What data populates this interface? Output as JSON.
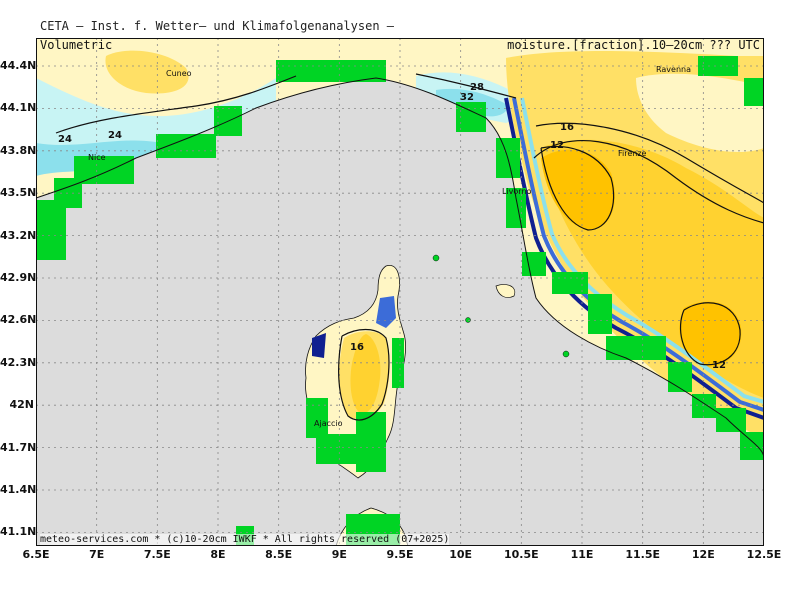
{
  "header": {
    "title": "CETA – Inst. f. Wetter– und Klimafolgenanalysen –",
    "left_subtitle": "Volumetric",
    "right_subtitle": "moisture.[fraction].10–20cm ??? UTC"
  },
  "footer": {
    "credit": "meteo-services.com * (c)10-20cm IWKF * All rights reserved (07+2025)"
  },
  "map": {
    "lon_labels": [
      "6.5E",
      "7E",
      "7.5E",
      "8E",
      "8.5E",
      "9E",
      "9.5E",
      "10E",
      "10.5E",
      "11E",
      "11.5E",
      "12E",
      "12.5E"
    ],
    "lat_labels": [
      "44.4N",
      "44.1N",
      "43.8N",
      "43.5N",
      "43.2N",
      "42.9N",
      "42.6N",
      "42.3N",
      "42N",
      "41.7N",
      "41.4N",
      "41.1N"
    ],
    "cities": [
      "Cuneo",
      "Nice",
      "Livorno",
      "Firenze",
      "Ravenna",
      "Ajaccio"
    ],
    "contour_labels": [
      "24",
      "24",
      "28",
      "32",
      "16",
      "12",
      "16",
      "12"
    ],
    "colors": {
      "sea": "#dcdcdc",
      "pale_yellow": "#fff6c4",
      "yellow": "#ffe066",
      "orange": "#ffc200",
      "light_cyan": "#c8f4f4",
      "cyan": "#8ce0ec",
      "blue": "#3c6cd8",
      "navy": "#102090",
      "masked": "#00d424"
    }
  }
}
